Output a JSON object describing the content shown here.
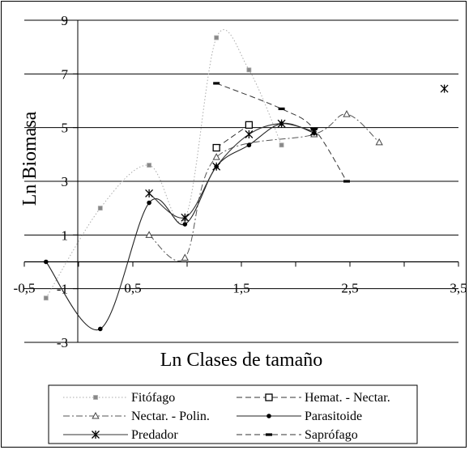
{
  "chart_data": {
    "type": "line",
    "title": "",
    "xlabel": "Ln  Clases de tamaño",
    "ylabel": "Ln  Biomasa",
    "xlim": [
      -0.5,
      3.5
    ],
    "ylim": [
      -3,
      9
    ],
    "x_ticks": [
      -0.5,
      0.5,
      1.5,
      2.5,
      3.5
    ],
    "x_tick_labels": [
      "-0,5",
      "0,5",
      "1,5",
      "2,5",
      "3,5"
    ],
    "y_ticks": [
      -3,
      -1,
      1,
      3,
      5,
      7,
      9
    ],
    "y_tick_labels": [
      "-3",
      "-1",
      "1",
      "3",
      "5",
      "7",
      "9"
    ],
    "grid": "horizontal",
    "legend_position": "bottom",
    "series": [
      {
        "name": "Fitófago",
        "color": "#aaaaaa",
        "line": "dotted",
        "marker": "square-small",
        "points": [
          [
            -0.3,
            -1.35
          ],
          [
            0.2,
            2.0
          ],
          [
            0.65,
            3.6
          ],
          [
            0.98,
            1.6
          ],
          [
            1.27,
            8.35
          ],
          [
            1.57,
            7.15
          ],
          [
            1.87,
            4.35
          ]
        ]
      },
      {
        "name": "Hemat. - Nectar.",
        "color": "#333333",
        "line": "dashed",
        "marker": "square-open",
        "points": [
          [
            1.27,
            4.25
          ],
          [
            1.57,
            5.1
          ]
        ]
      },
      {
        "name": "Nectar. - Polin.",
        "color": "#555555",
        "line": "dashdot",
        "marker": "triangle-open",
        "points": [
          [
            0.65,
            1.0
          ],
          [
            0.98,
            0.15
          ],
          [
            1.27,
            3.9
          ],
          [
            2.17,
            4.75
          ],
          [
            2.47,
            5.5
          ],
          [
            2.77,
            4.45
          ]
        ]
      },
      {
        "name": "Parasitoide",
        "color": "#222222",
        "line": "solid",
        "marker": "circle-filled",
        "points": [
          [
            -0.3,
            0.0
          ],
          [
            0.2,
            -2.5
          ],
          [
            0.65,
            2.2
          ],
          [
            0.98,
            1.4
          ],
          [
            1.27,
            3.55
          ],
          [
            1.57,
            4.35
          ],
          [
            1.87,
            5.15
          ],
          [
            2.17,
            4.8
          ]
        ]
      },
      {
        "name": "Predador",
        "color": "#333333",
        "line": "solid",
        "marker": "star",
        "points": [
          [
            0.65,
            2.55
          ],
          [
            0.98,
            1.65
          ],
          [
            1.27,
            3.55
          ],
          [
            1.57,
            4.75
          ],
          [
            1.87,
            5.15
          ],
          [
            2.17,
            4.85
          ],
          [
            3.37,
            6.45
          ]
        ]
      },
      {
        "name": "Saprófago",
        "color": "#333333",
        "line": "dashed",
        "marker": "dash",
        "points": [
          [
            1.27,
            6.65
          ],
          [
            1.87,
            5.7
          ],
          [
            2.17,
            4.95
          ],
          [
            2.47,
            3.0
          ]
        ]
      }
    ]
  }
}
